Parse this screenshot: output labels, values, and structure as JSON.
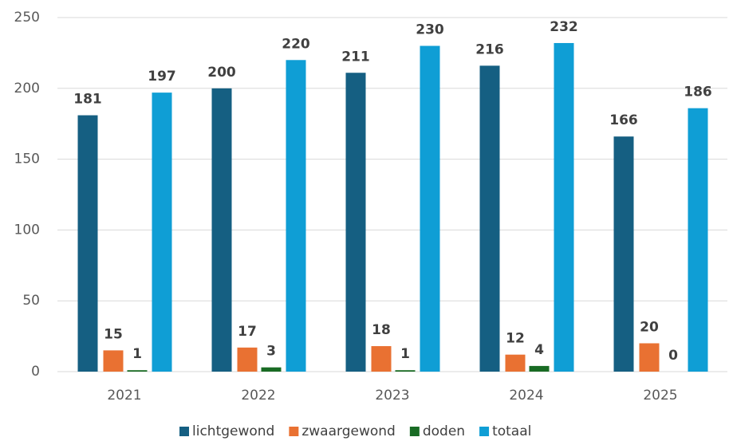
{
  "chart_data": {
    "type": "bar",
    "categories": [
      "2021",
      "2022",
      "2023",
      "2024",
      "2025"
    ],
    "series": [
      {
        "name": "lichtgewond",
        "color": "#155f82",
        "values": [
          181,
          200,
          211,
          216,
          166
        ]
      },
      {
        "name": "zwaargewond",
        "color": "#e97132",
        "values": [
          15,
          17,
          18,
          12,
          20
        ]
      },
      {
        "name": "doden",
        "color": "#196b24",
        "values": [
          1,
          3,
          1,
          4,
          0
        ]
      },
      {
        "name": "totaal",
        "color": "#0f9ed5",
        "values": [
          197,
          220,
          230,
          232,
          186
        ]
      }
    ],
    "ylim": [
      0,
      250
    ],
    "yticks": [
      0,
      50,
      100,
      150,
      200,
      250
    ],
    "grid": true,
    "legend": "bottom"
  }
}
